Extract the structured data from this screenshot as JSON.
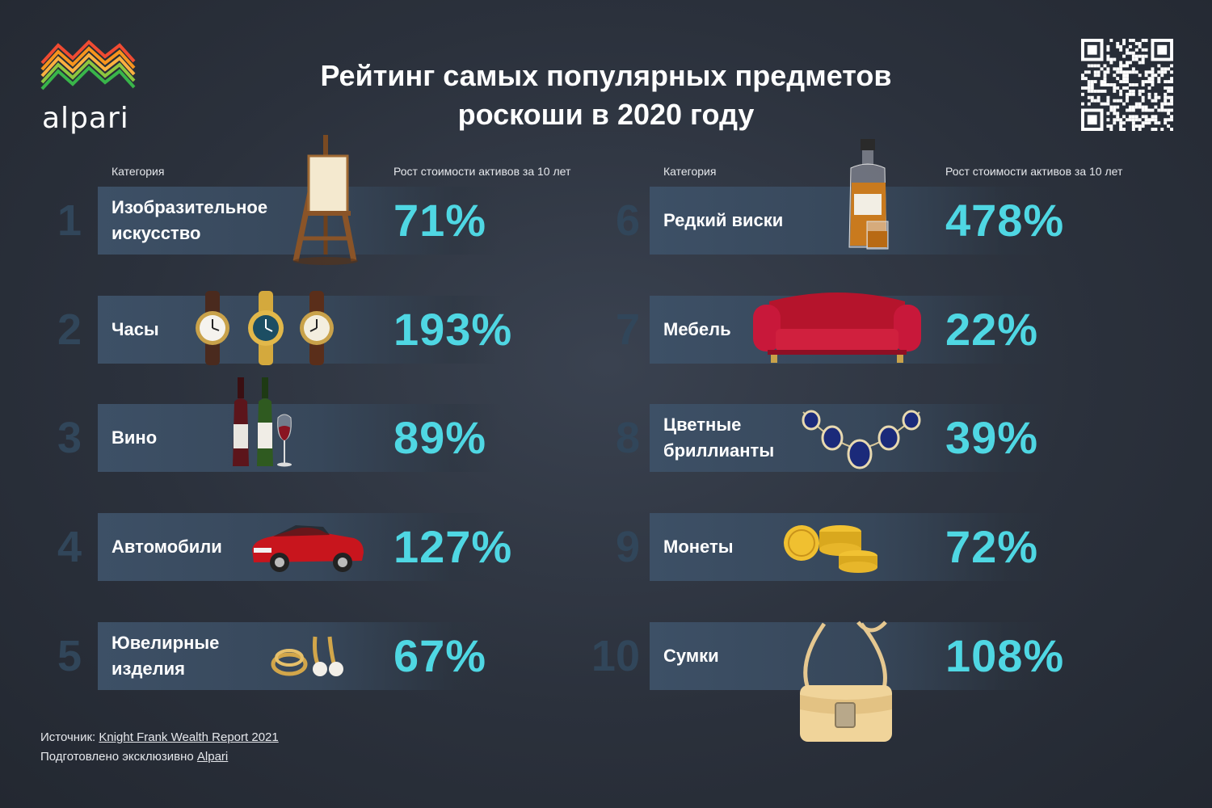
{
  "brand": {
    "name": "alpari"
  },
  "title_line1": "Рейтинг самых популярных предметов",
  "title_line2": "роскоши в 2020 году",
  "headers": {
    "category": "Категория",
    "growth": "Рост стоимости активов за 10 лет"
  },
  "items": [
    {
      "rank": "1",
      "category_l1": "Изобразительное",
      "category_l2": "искусство",
      "growth": "71%",
      "icon": "easel-icon"
    },
    {
      "rank": "2",
      "category_l1": "Часы",
      "category_l2": "",
      "growth": "193%",
      "icon": "watches-icon"
    },
    {
      "rank": "3",
      "category_l1": "Вино",
      "category_l2": "",
      "growth": "89%",
      "icon": "wine-icon"
    },
    {
      "rank": "4",
      "category_l1": "Автомобили",
      "category_l2": "",
      "growth": "127%",
      "icon": "car-icon"
    },
    {
      "rank": "5",
      "category_l1": "Ювелирные",
      "category_l2": "изделия",
      "growth": "67%",
      "icon": "rings-icon"
    },
    {
      "rank": "6",
      "category_l1": "Редкий виски",
      "category_l2": "",
      "growth": "478%",
      "icon": "whisky-icon"
    },
    {
      "rank": "7",
      "category_l1": "Мебель",
      "category_l2": "",
      "growth": "22%",
      "icon": "sofa-icon"
    },
    {
      "rank": "8",
      "category_l1": "Цветные",
      "category_l2": "бриллианты",
      "growth": "39%",
      "icon": "necklace-icon"
    },
    {
      "rank": "9",
      "category_l1": "Монеты",
      "category_l2": "",
      "growth": "72%",
      "icon": "coins-icon"
    },
    {
      "rank": "10",
      "category_l1": "Сумки",
      "category_l2": "",
      "growth": "108%",
      "icon": "handbag-icon"
    }
  ],
  "footer": {
    "source_label": "Источник: ",
    "source_link": "Knight Frank Wealth Report 2021",
    "prepared_label": "Подготовлено эксклюзивно ",
    "prepared_link": "Alpari"
  },
  "colors": {
    "accent": "#4fd7e3",
    "rank": "#31465a",
    "background": "#2b313c"
  }
}
